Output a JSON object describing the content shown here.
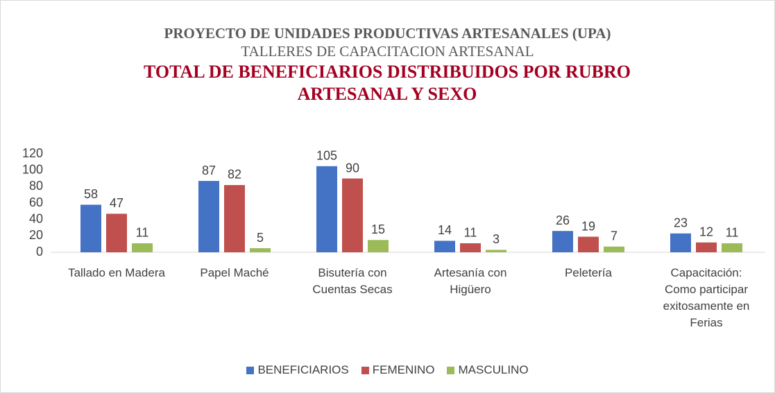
{
  "chart_data": {
    "type": "bar",
    "title": "PROYECTO DE UNIDADES PRODUCTIVAS ARTESANALES (UPA)",
    "subtitle": "TALLERES DE CAPACITACION ARTESANAL",
    "heading": "TOTAL DE BENEFICIARIOS DISTRIBUIDOS POR RUBRO ARTESANAL Y SEXO",
    "categories": [
      "Tallado en Madera",
      "Papel Maché",
      "Bisutería con Cuentas Secas",
      "Artesanía con Higüero",
      "Peletería",
      "Capacitación: Como participar exitosamente en Ferias"
    ],
    "series": [
      {
        "name": "BENEFICIARIOS",
        "color": "#4472c4",
        "values": [
          58,
          87,
          105,
          14,
          26,
          23
        ]
      },
      {
        "name": "FEMENINO",
        "color": "#c0504d",
        "values": [
          47,
          82,
          90,
          11,
          19,
          12
        ]
      },
      {
        "name": "MASCULINO",
        "color": "#9bbb59",
        "values": [
          11,
          5,
          15,
          3,
          7,
          11
        ]
      }
    ],
    "ylim": [
      0,
      120
    ],
    "yticks": [
      0,
      20,
      40,
      60,
      80,
      100,
      120
    ],
    "grid": false,
    "legend": "bottom"
  }
}
